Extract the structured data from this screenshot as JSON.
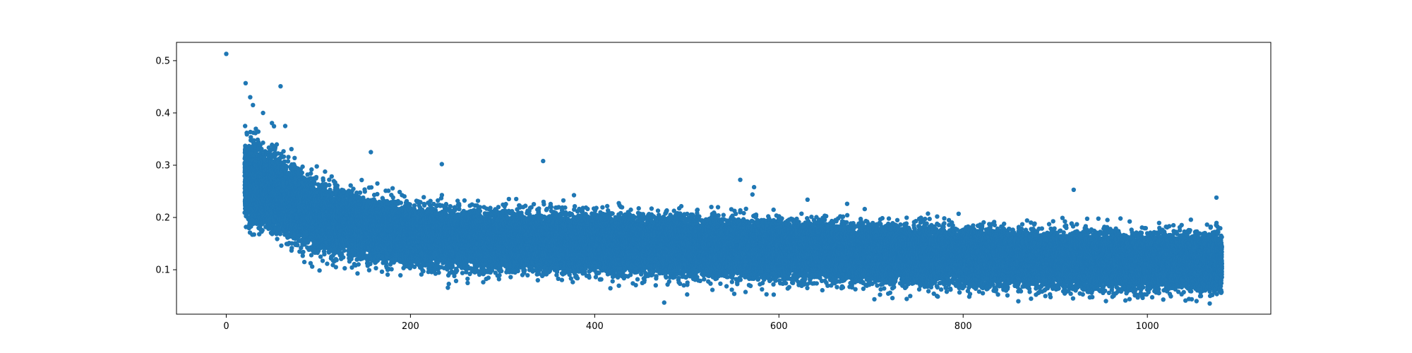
{
  "chart_data": {
    "type": "scatter",
    "title": "",
    "xlabel": "",
    "ylabel": "",
    "xlim": [
      -54,
      1134
    ],
    "ylim": [
      0.015,
      0.535
    ],
    "x_ticks": [
      0,
      200,
      400,
      600,
      800,
      1000
    ],
    "y_ticks": [
      0.1,
      0.2,
      0.3,
      0.4,
      0.5
    ],
    "x_tick_labels": [
      "0",
      "200",
      "400",
      "600",
      "800",
      "1000"
    ],
    "y_tick_labels": [
      "0.1",
      "0.2",
      "0.3",
      "0.4",
      "0.5"
    ],
    "grid": false,
    "legend": "none",
    "series": [
      {
        "color": "#1f77b4",
        "points_note_removed": true,
        "density_profile": {
          "x_range": [
            20,
            1080
          ],
          "points_per_x": 60,
          "mean_curve": [
            [
              20,
              0.275
            ],
            [
              50,
              0.25
            ],
            [
              100,
              0.2
            ],
            [
              150,
              0.18
            ],
            [
              200,
              0.165
            ],
            [
              300,
              0.155
            ],
            [
              400,
              0.15
            ],
            [
              500,
              0.145
            ],
            [
              600,
              0.14
            ],
            [
              700,
              0.13
            ],
            [
              800,
              0.125
            ],
            [
              900,
              0.12
            ],
            [
              1000,
              0.115
            ],
            [
              1080,
              0.115
            ]
          ],
          "spread_curve": [
            [
              20,
              0.045
            ],
            [
              100,
              0.035
            ],
            [
              200,
              0.03
            ],
            [
              400,
              0.03
            ],
            [
              1080,
              0.028
            ]
          ]
        },
        "outliers": [
          [
            0,
            0.513
          ],
          [
            21,
            0.457
          ],
          [
            26,
            0.43
          ],
          [
            29,
            0.415
          ],
          [
            40,
            0.4
          ],
          [
            59,
            0.451
          ],
          [
            64,
            0.375
          ],
          [
            157,
            0.325
          ],
          [
            234,
            0.302
          ],
          [
            344,
            0.308
          ],
          [
            558,
            0.272
          ],
          [
            573,
            0.258
          ],
          [
            920,
            0.253
          ],
          [
            1075,
            0.238
          ],
          [
            955,
            0.04
          ]
        ]
      }
    ]
  }
}
